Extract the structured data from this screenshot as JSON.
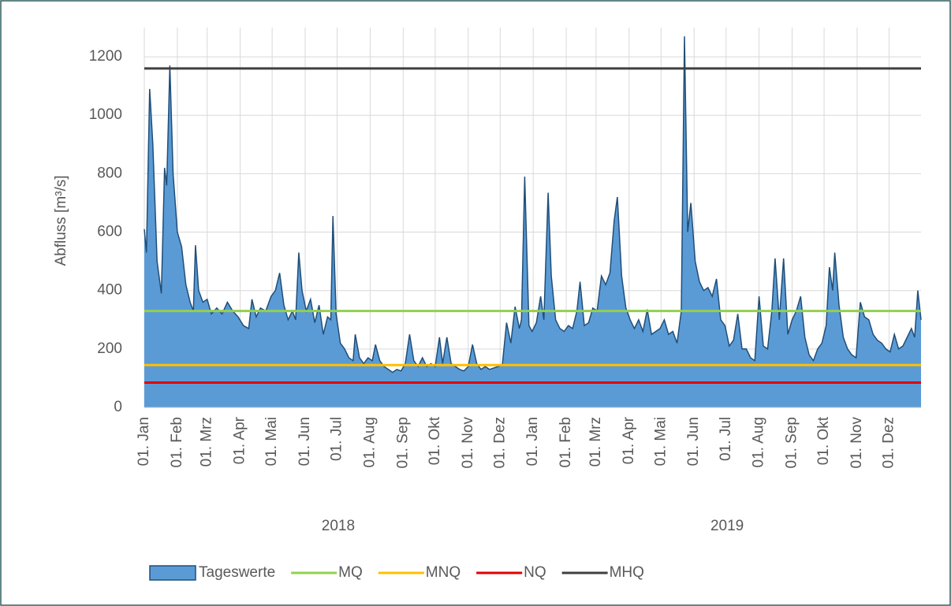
{
  "chart_data": {
    "type": "area",
    "y_label": "Abfluss [m³/s]",
    "ylim": [
      0,
      1300
    ],
    "yticks": [
      0,
      200,
      400,
      600,
      800,
      1000,
      1200
    ],
    "xlim": [
      "2018-01-01",
      "2019-12-31"
    ],
    "grid": true,
    "legend": "bottom",
    "xticks": [
      {
        "value": "2018-01-01",
        "label": "01. Jan"
      },
      {
        "value": "2018-02-01",
        "label": "01. Feb"
      },
      {
        "value": "2018-03-01",
        "label": "01. Mrz"
      },
      {
        "value": "2018-04-01",
        "label": "01. Apr"
      },
      {
        "value": "2018-05-01",
        "label": "01. Mai"
      },
      {
        "value": "2018-06-01",
        "label": "01. Jun"
      },
      {
        "value": "2018-07-01",
        "label": "01. Jul"
      },
      {
        "value": "2018-08-01",
        "label": "01. Aug"
      },
      {
        "value": "2018-09-01",
        "label": "01. Sep"
      },
      {
        "value": "2018-10-01",
        "label": "01. Okt"
      },
      {
        "value": "2018-11-01",
        "label": "01. Nov"
      },
      {
        "value": "2018-12-01",
        "label": "01. Dez"
      },
      {
        "value": "2019-01-01",
        "label": "01. Jan"
      },
      {
        "value": "2019-02-01",
        "label": "01. Feb"
      },
      {
        "value": "2019-03-01",
        "label": "01. Mrz"
      },
      {
        "value": "2019-04-01",
        "label": "01. Apr"
      },
      {
        "value": "2019-05-01",
        "label": "01. Mai"
      },
      {
        "value": "2019-06-01",
        "label": "01. Jun"
      },
      {
        "value": "2019-07-01",
        "label": "01. Jul"
      },
      {
        "value": "2019-08-01",
        "label": "01. Aug"
      },
      {
        "value": "2019-09-01",
        "label": "01. Sep"
      },
      {
        "value": "2019-10-01",
        "label": "01. Okt"
      },
      {
        "value": "2019-11-01",
        "label": "01. Nov"
      },
      {
        "value": "2019-12-01",
        "label": "01. Dez"
      }
    ],
    "year_groups": [
      {
        "label": "2018",
        "start": "2018-01-01",
        "end": "2018-12-31"
      },
      {
        "label": "2019",
        "start": "2019-01-01",
        "end": "2019-12-31"
      }
    ],
    "x": [
      "2018-01-01",
      "2018-01-03",
      "2018-01-06",
      "2018-01-09",
      "2018-01-13",
      "2018-01-17",
      "2018-01-20",
      "2018-01-22",
      "2018-01-25",
      "2018-01-28",
      "2018-02-01",
      "2018-02-05",
      "2018-02-09",
      "2018-02-13",
      "2018-02-16",
      "2018-02-18",
      "2018-02-21",
      "2018-02-25",
      "2018-03-01",
      "2018-03-05",
      "2018-03-10",
      "2018-03-15",
      "2018-03-20",
      "2018-03-25",
      "2018-03-30",
      "2018-04-04",
      "2018-04-09",
      "2018-04-12",
      "2018-04-16",
      "2018-04-20",
      "2018-04-25",
      "2018-04-30",
      "2018-05-04",
      "2018-05-08",
      "2018-05-12",
      "2018-05-16",
      "2018-05-20",
      "2018-05-23",
      "2018-05-26",
      "2018-05-29",
      "2018-06-02",
      "2018-06-06",
      "2018-06-10",
      "2018-06-14",
      "2018-06-18",
      "2018-06-22",
      "2018-06-25",
      "2018-06-27",
      "2018-06-30",
      "2018-07-04",
      "2018-07-08",
      "2018-07-12",
      "2018-07-16",
      "2018-07-18",
      "2018-07-22",
      "2018-07-26",
      "2018-07-30",
      "2018-08-03",
      "2018-08-06",
      "2018-08-10",
      "2018-08-14",
      "2018-08-18",
      "2018-08-22",
      "2018-08-26",
      "2018-08-30",
      "2018-09-03",
      "2018-09-07",
      "2018-09-11",
      "2018-09-15",
      "2018-09-19",
      "2018-09-23",
      "2018-09-27",
      "2018-10-01",
      "2018-10-05",
      "2018-10-08",
      "2018-10-12",
      "2018-10-16",
      "2018-10-20",
      "2018-10-24",
      "2018-10-28",
      "2018-11-01",
      "2018-11-05",
      "2018-11-09",
      "2018-11-13",
      "2018-11-17",
      "2018-11-21",
      "2018-11-25",
      "2018-11-29",
      "2018-12-03",
      "2018-12-07",
      "2018-12-11",
      "2018-12-15",
      "2018-12-19",
      "2018-12-21",
      "2018-12-24",
      "2018-12-28",
      "2018-12-31",
      "2019-01-04",
      "2019-01-08",
      "2019-01-11",
      "2019-01-15",
      "2019-01-18",
      "2019-01-22",
      "2019-01-26",
      "2019-01-30",
      "2019-02-03",
      "2019-02-07",
      "2019-02-11",
      "2019-02-14",
      "2019-02-18",
      "2019-02-22",
      "2019-02-26",
      "2019-03-02",
      "2019-03-06",
      "2019-03-10",
      "2019-03-14",
      "2019-03-18",
      "2019-03-21",
      "2019-03-25",
      "2019-03-29",
      "2019-04-02",
      "2019-04-06",
      "2019-04-10",
      "2019-04-14",
      "2019-04-18",
      "2019-04-22",
      "2019-04-26",
      "2019-04-30",
      "2019-05-04",
      "2019-05-08",
      "2019-05-12",
      "2019-05-16",
      "2019-05-20",
      "2019-05-23",
      "2019-05-26",
      "2019-05-29",
      "2019-06-02",
      "2019-06-06",
      "2019-06-10",
      "2019-06-14",
      "2019-06-18",
      "2019-06-22",
      "2019-06-26",
      "2019-06-30",
      "2019-07-04",
      "2019-07-08",
      "2019-07-12",
      "2019-07-16",
      "2019-07-20",
      "2019-07-24",
      "2019-07-28",
      "2019-08-01",
      "2019-08-05",
      "2019-08-09",
      "2019-08-13",
      "2019-08-16",
      "2019-08-20",
      "2019-08-24",
      "2019-08-28",
      "2019-09-01",
      "2019-09-05",
      "2019-09-09",
      "2019-09-13",
      "2019-09-17",
      "2019-09-21",
      "2019-09-25",
      "2019-09-29",
      "2019-10-03",
      "2019-10-06",
      "2019-10-09",
      "2019-10-11",
      "2019-10-15",
      "2019-10-19",
      "2019-10-23",
      "2019-10-27",
      "2019-10-31",
      "2019-11-04",
      "2019-11-08",
      "2019-11-12",
      "2019-11-16",
      "2019-11-20",
      "2019-11-24",
      "2019-11-28",
      "2019-12-02",
      "2019-12-06",
      "2019-12-10",
      "2019-12-14",
      "2019-12-18",
      "2019-12-22",
      "2019-12-25",
      "2019-12-28",
      "2019-12-31"
    ],
    "series": [
      {
        "name": "Tageswerte",
        "color": "#5b9bd5",
        "edge_color": "#1f4e79",
        "values": [
          610,
          530,
          1090,
          900,
          500,
          390,
          820,
          760,
          1170,
          800,
          600,
          550,
          420,
          360,
          330,
          555,
          400,
          360,
          370,
          320,
          340,
          320,
          360,
          330,
          310,
          280,
          270,
          370,
          310,
          340,
          330,
          380,
          400,
          460,
          350,
          300,
          330,
          300,
          530,
          400,
          330,
          370,
          290,
          350,
          250,
          310,
          300,
          655,
          320,
          220,
          200,
          170,
          160,
          250,
          170,
          150,
          170,
          160,
          215,
          160,
          140,
          130,
          120,
          130,
          125,
          150,
          250,
          160,
          140,
          170,
          140,
          150,
          140,
          240,
          150,
          240,
          150,
          140,
          130,
          125,
          140,
          215,
          150,
          130,
          140,
          130,
          135,
          140,
          145,
          290,
          220,
          345,
          270,
          300,
          790,
          280,
          260,
          290,
          380,
          300,
          735,
          450,
          300,
          270,
          260,
          280,
          270,
          330,
          430,
          280,
          290,
          340,
          330,
          450,
          420,
          460,
          640,
          720,
          450,
          340,
          300,
          270,
          300,
          260,
          335,
          250,
          260,
          270,
          300,
          250,
          260,
          220,
          330,
          1270,
          600,
          700,
          500,
          430,
          400,
          410,
          380,
          440,
          300,
          280,
          210,
          230,
          320,
          200,
          200,
          170,
          160,
          380,
          210,
          200,
          330,
          510,
          300,
          510,
          250,
          300,
          330,
          380,
          240,
          180,
          160,
          200,
          220,
          280,
          480,
          400,
          530,
          350,
          240,
          200,
          180,
          170,
          360,
          310,
          300,
          250,
          230,
          220,
          200,
          190,
          250,
          200,
          210,
          240,
          270,
          240,
          400,
          300
        ]
      }
    ],
    "reference_lines": [
      {
        "name": "MQ",
        "value": 330,
        "color": "#92d050"
      },
      {
        "name": "MNQ",
        "value": 145,
        "color": "#ffc000"
      },
      {
        "name": "NQ",
        "value": 85,
        "color": "#e00000"
      },
      {
        "name": "MHQ",
        "value": 1160,
        "color": "#404040"
      }
    ]
  }
}
